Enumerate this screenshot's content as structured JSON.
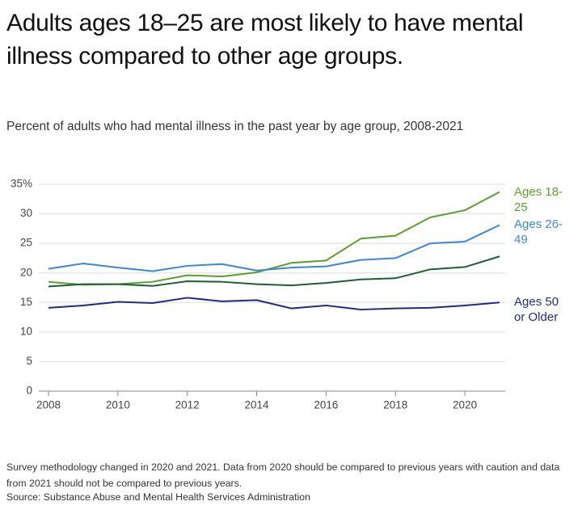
{
  "chart_data": {
    "type": "line",
    "title": "Adults ages 18–25 are most likely to have mental illness compared to other age groups.",
    "subtitle": "Percent of adults who had mental illness in the past year by age group, 2008-2021",
    "notes": "Survey methodology changed in 2020 and 2021. Data from 2020 should be compared to previous years with caution and data from 2021 should not be compared to previous years.",
    "source": "Source: Substance Abuse and Mental Health Services Administration",
    "x": [
      2008,
      2009,
      2010,
      2011,
      2012,
      2013,
      2014,
      2015,
      2016,
      2017,
      2018,
      2019,
      2020,
      2021
    ],
    "series": [
      {
        "name": "Ages 18-25",
        "color": "#5aa02c",
        "values": [
          18.5,
          18.0,
          18.1,
          18.5,
          19.6,
          19.4,
          20.1,
          21.7,
          22.1,
          25.8,
          26.3,
          29.4,
          30.6,
          33.7
        ]
      },
      {
        "name": "Ages 26-49",
        "color": "#3a86e0",
        "values": [
          20.7,
          21.6,
          20.9,
          20.3,
          21.2,
          21.5,
          20.4,
          20.9,
          21.1,
          22.2,
          22.5,
          25.0,
          25.3,
          28.1
        ]
      },
      {
        "color": "#1d5e34",
        "values": [
          17.7,
          18.1,
          18.1,
          17.8,
          18.6,
          18.5,
          18.1,
          17.9,
          18.3,
          18.9,
          19.1,
          20.6,
          21.0,
          22.8
        ]
      },
      {
        "name": "Ages 50 or Older",
        "color": "#1f2a8a",
        "values": [
          14.1,
          14.5,
          15.1,
          14.9,
          15.8,
          15.2,
          15.4,
          14.0,
          14.5,
          13.8,
          14.0,
          14.1,
          14.5,
          15.0
        ]
      }
    ],
    "xlim": [
      2008,
      2021
    ],
    "xticks": [
      2008,
      2010,
      2012,
      2014,
      2016,
      2018,
      2020
    ],
    "ylim": [
      0,
      35
    ],
    "yticks": [
      0,
      5,
      10,
      15,
      20,
      25,
      30,
      {
        "value": 35,
        "label": "35%"
      }
    ],
    "grid": true
  }
}
